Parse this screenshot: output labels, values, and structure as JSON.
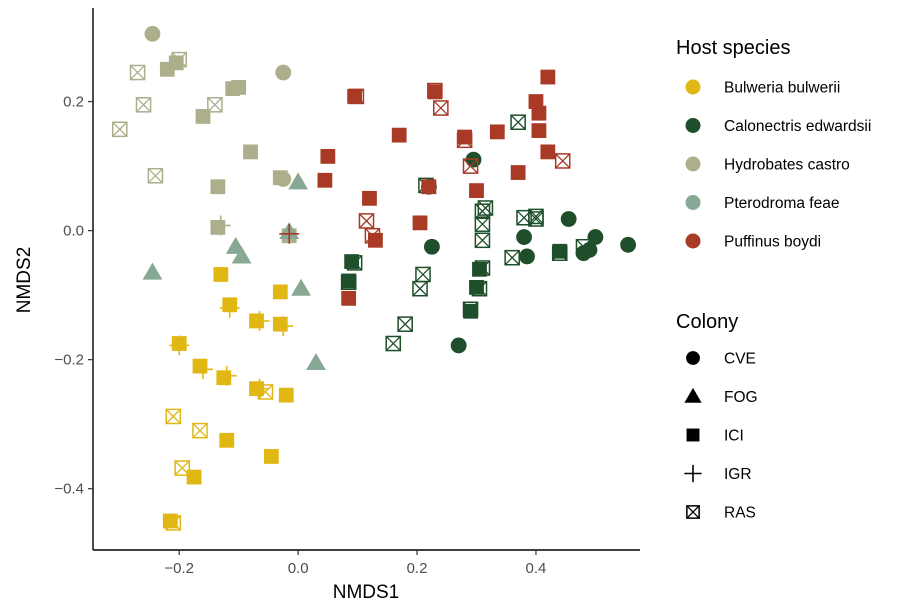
{
  "chart_data": {
    "type": "scatter",
    "xlabel": "NMDS1",
    "ylabel": "NMDS2",
    "xlim": [
      -0.345,
      0.575
    ],
    "ylim": [
      -0.495,
      0.345
    ],
    "xticks": [
      -0.2,
      0.0,
      0.2,
      0.4
    ],
    "yticks": [
      -0.4,
      -0.2,
      0.0,
      0.2
    ],
    "xtick_labels": [
      "−0.2",
      "0.0",
      "0.2",
      "0.4"
    ],
    "ytick_labels": [
      "−0.4",
      "−0.2",
      "0.0",
      "0.2"
    ],
    "grid": false,
    "legend_position": "right",
    "legend_species_title": "Host species",
    "legend_colony_title": "Colony",
    "species": [
      {
        "key": "BB",
        "name": "Bulweria bulwerii",
        "color": "#E0B713"
      },
      {
        "key": "CE",
        "name": "Calonectris edwardsii",
        "color": "#1F4F2A"
      },
      {
        "key": "HC",
        "name": "Hydrobates castro",
        "color": "#ADAE8B"
      },
      {
        "key": "PF",
        "name": "Pterodroma feae",
        "color": "#87A894"
      },
      {
        "key": "PB",
        "name": "Puffinus boydi",
        "color": "#A93A26"
      }
    ],
    "colonies": [
      {
        "key": "CVE",
        "name": "CVE",
        "shape": "circle"
      },
      {
        "key": "FOG",
        "name": "FOG",
        "shape": "triangle"
      },
      {
        "key": "ICI",
        "name": "ICI",
        "shape": "square"
      },
      {
        "key": "IGR",
        "name": "IGR",
        "shape": "plus"
      },
      {
        "key": "RAS",
        "name": "RAS",
        "shape": "boxx"
      }
    ],
    "points": [
      {
        "x": -0.13,
        "y": -0.068,
        "s": "BB",
        "c": "ICI"
      },
      {
        "x": -0.115,
        "y": -0.115,
        "s": "BB",
        "c": "ICI"
      },
      {
        "x": -0.115,
        "y": -0.12,
        "s": "BB",
        "c": "IGR"
      },
      {
        "x": -0.07,
        "y": -0.14,
        "s": "BB",
        "c": "ICI"
      },
      {
        "x": -0.065,
        "y": -0.14,
        "s": "BB",
        "c": "IGR"
      },
      {
        "x": -0.03,
        "y": -0.095,
        "s": "BB",
        "c": "ICI"
      },
      {
        "x": -0.03,
        "y": -0.145,
        "s": "BB",
        "c": "ICI"
      },
      {
        "x": -0.025,
        "y": -0.148,
        "s": "BB",
        "c": "IGR"
      },
      {
        "x": -0.2,
        "y": -0.175,
        "s": "BB",
        "c": "ICI"
      },
      {
        "x": -0.2,
        "y": -0.178,
        "s": "BB",
        "c": "IGR"
      },
      {
        "x": -0.165,
        "y": -0.21,
        "s": "BB",
        "c": "ICI"
      },
      {
        "x": -0.16,
        "y": -0.215,
        "s": "BB",
        "c": "IGR"
      },
      {
        "x": -0.125,
        "y": -0.228,
        "s": "BB",
        "c": "ICI"
      },
      {
        "x": -0.12,
        "y": -0.225,
        "s": "BB",
        "c": "IGR"
      },
      {
        "x": -0.07,
        "y": -0.245,
        "s": "BB",
        "c": "ICI"
      },
      {
        "x": -0.065,
        "y": -0.245,
        "s": "BB",
        "c": "IGR"
      },
      {
        "x": -0.055,
        "y": -0.25,
        "s": "BB",
        "c": "RAS"
      },
      {
        "x": -0.02,
        "y": -0.255,
        "s": "BB",
        "c": "ICI"
      },
      {
        "x": -0.21,
        "y": -0.288,
        "s": "BB",
        "c": "RAS"
      },
      {
        "x": -0.165,
        "y": -0.31,
        "s": "BB",
        "c": "RAS"
      },
      {
        "x": -0.12,
        "y": -0.325,
        "s": "BB",
        "c": "ICI"
      },
      {
        "x": -0.045,
        "y": -0.35,
        "s": "BB",
        "c": "ICI"
      },
      {
        "x": -0.195,
        "y": -0.368,
        "s": "BB",
        "c": "RAS"
      },
      {
        "x": -0.175,
        "y": -0.382,
        "s": "BB",
        "c": "ICI"
      },
      {
        "x": -0.215,
        "y": -0.45,
        "s": "BB",
        "c": "ICI"
      },
      {
        "x": -0.21,
        "y": -0.453,
        "s": "BB",
        "c": "RAS"
      },
      {
        "x": 0.09,
        "y": -0.048,
        "s": "CE",
        "c": "ICI"
      },
      {
        "x": 0.095,
        "y": -0.05,
        "s": "CE",
        "c": "RAS"
      },
      {
        "x": 0.085,
        "y": -0.078,
        "s": "CE",
        "c": "ICI"
      },
      {
        "x": 0.085,
        "y": -0.08,
        "s": "CE",
        "c": "RAS"
      },
      {
        "x": 0.18,
        "y": -0.145,
        "s": "CE",
        "c": "RAS"
      },
      {
        "x": 0.16,
        "y": -0.175,
        "s": "CE",
        "c": "RAS"
      },
      {
        "x": 0.21,
        "y": -0.068,
        "s": "CE",
        "c": "RAS"
      },
      {
        "x": 0.205,
        "y": -0.09,
        "s": "CE",
        "c": "RAS"
      },
      {
        "x": 0.225,
        "y": -0.025,
        "s": "CE",
        "c": "CVE"
      },
      {
        "x": 0.215,
        "y": 0.07,
        "s": "CE",
        "c": "RAS"
      },
      {
        "x": 0.22,
        "y": 0.068,
        "s": "CE",
        "c": "CVE"
      },
      {
        "x": 0.27,
        "y": -0.178,
        "s": "CE",
        "c": "CVE"
      },
      {
        "x": 0.29,
        "y": -0.125,
        "s": "CE",
        "c": "ICI"
      },
      {
        "x": 0.29,
        "y": -0.122,
        "s": "CE",
        "c": "RAS"
      },
      {
        "x": 0.3,
        "y": -0.088,
        "s": "CE",
        "c": "ICI"
      },
      {
        "x": 0.305,
        "y": -0.09,
        "s": "CE",
        "c": "RAS"
      },
      {
        "x": 0.305,
        "y": -0.06,
        "s": "CE",
        "c": "ICI"
      },
      {
        "x": 0.31,
        "y": -0.058,
        "s": "CE",
        "c": "RAS"
      },
      {
        "x": 0.295,
        "y": 0.11,
        "s": "CE",
        "c": "CVE"
      },
      {
        "x": 0.31,
        "y": 0.03,
        "s": "CE",
        "c": "RAS"
      },
      {
        "x": 0.31,
        "y": 0.01,
        "s": "CE",
        "c": "RAS"
      },
      {
        "x": 0.31,
        "y": -0.015,
        "s": "CE",
        "c": "RAS"
      },
      {
        "x": 0.315,
        "y": 0.035,
        "s": "CE",
        "c": "RAS"
      },
      {
        "x": 0.37,
        "y": 0.168,
        "s": "CE",
        "c": "RAS"
      },
      {
        "x": 0.36,
        "y": -0.042,
        "s": "CE",
        "c": "RAS"
      },
      {
        "x": 0.38,
        "y": -0.01,
        "s": "CE",
        "c": "CVE"
      },
      {
        "x": 0.385,
        "y": -0.04,
        "s": "CE",
        "c": "CVE"
      },
      {
        "x": 0.38,
        "y": 0.02,
        "s": "CE",
        "c": "RAS"
      },
      {
        "x": 0.4,
        "y": 0.022,
        "s": "CE",
        "c": "RAS"
      },
      {
        "x": 0.4,
        "y": 0.018,
        "s": "CE",
        "c": "RAS"
      },
      {
        "x": 0.44,
        "y": -0.032,
        "s": "CE",
        "c": "ICI"
      },
      {
        "x": 0.44,
        "y": -0.035,
        "s": "CE",
        "c": "RAS"
      },
      {
        "x": 0.455,
        "y": 0.018,
        "s": "CE",
        "c": "CVE"
      },
      {
        "x": 0.48,
        "y": -0.035,
        "s": "CE",
        "c": "CVE"
      },
      {
        "x": 0.48,
        "y": -0.025,
        "s": "CE",
        "c": "RAS"
      },
      {
        "x": 0.49,
        "y": -0.03,
        "s": "CE",
        "c": "CVE"
      },
      {
        "x": 0.5,
        "y": -0.01,
        "s": "CE",
        "c": "CVE"
      },
      {
        "x": 0.555,
        "y": -0.022,
        "s": "CE",
        "c": "CVE"
      },
      {
        "x": -0.245,
        "y": 0.305,
        "s": "HC",
        "c": "CVE"
      },
      {
        "x": -0.27,
        "y": 0.245,
        "s": "HC",
        "c": "RAS"
      },
      {
        "x": -0.22,
        "y": 0.25,
        "s": "HC",
        "c": "ICI"
      },
      {
        "x": -0.205,
        "y": 0.26,
        "s": "HC",
        "c": "ICI"
      },
      {
        "x": -0.2,
        "y": 0.265,
        "s": "HC",
        "c": "RAS"
      },
      {
        "x": -0.26,
        "y": 0.195,
        "s": "HC",
        "c": "RAS"
      },
      {
        "x": -0.3,
        "y": 0.157,
        "s": "HC",
        "c": "RAS"
      },
      {
        "x": -0.16,
        "y": 0.177,
        "s": "HC",
        "c": "ICI"
      },
      {
        "x": -0.14,
        "y": 0.195,
        "s": "HC",
        "c": "RAS"
      },
      {
        "x": -0.11,
        "y": 0.22,
        "s": "HC",
        "c": "ICI"
      },
      {
        "x": -0.1,
        "y": 0.222,
        "s": "HC",
        "c": "ICI"
      },
      {
        "x": -0.025,
        "y": 0.245,
        "s": "HC",
        "c": "CVE"
      },
      {
        "x": -0.08,
        "y": 0.122,
        "s": "HC",
        "c": "ICI"
      },
      {
        "x": -0.03,
        "y": 0.082,
        "s": "HC",
        "c": "ICI"
      },
      {
        "x": -0.025,
        "y": 0.08,
        "s": "HC",
        "c": "CVE"
      },
      {
        "x": -0.24,
        "y": 0.085,
        "s": "HC",
        "c": "RAS"
      },
      {
        "x": -0.135,
        "y": 0.068,
        "s": "HC",
        "c": "ICI"
      },
      {
        "x": -0.135,
        "y": 0.005,
        "s": "HC",
        "c": "ICI"
      },
      {
        "x": -0.13,
        "y": 0.008,
        "s": "HC",
        "c": "IGR"
      },
      {
        "x": -0.015,
        "y": -0.008,
        "s": "HC",
        "c": "ICI"
      },
      {
        "x": 0.0,
        "y": 0.075,
        "s": "PF",
        "c": "FOG"
      },
      {
        "x": -0.015,
        "y": -0.002,
        "s": "PF",
        "c": "FOG"
      },
      {
        "x": -0.105,
        "y": -0.025,
        "s": "PF",
        "c": "FOG"
      },
      {
        "x": -0.095,
        "y": -0.04,
        "s": "PF",
        "c": "FOG"
      },
      {
        "x": -0.245,
        "y": -0.065,
        "s": "PF",
        "c": "FOG"
      },
      {
        "x": 0.005,
        "y": -0.09,
        "s": "PF",
        "c": "FOG"
      },
      {
        "x": 0.03,
        "y": -0.205,
        "s": "PF",
        "c": "FOG"
      },
      {
        "x": -0.015,
        "y": -0.005,
        "s": "PB",
        "c": "IGR"
      },
      {
        "x": 0.05,
        "y": 0.115,
        "s": "PB",
        "c": "ICI"
      },
      {
        "x": 0.045,
        "y": 0.078,
        "s": "PB",
        "c": "ICI"
      },
      {
        "x": 0.095,
        "y": 0.208,
        "s": "PB",
        "c": "ICI"
      },
      {
        "x": 0.098,
        "y": 0.208,
        "s": "PB",
        "c": "RAS"
      },
      {
        "x": 0.12,
        "y": 0.05,
        "s": "PB",
        "c": "ICI"
      },
      {
        "x": 0.115,
        "y": 0.015,
        "s": "PB",
        "c": "RAS"
      },
      {
        "x": 0.125,
        "y": -0.008,
        "s": "PB",
        "c": "RAS"
      },
      {
        "x": 0.13,
        "y": -0.015,
        "s": "PB",
        "c": "ICI"
      },
      {
        "x": 0.085,
        "y": -0.105,
        "s": "PB",
        "c": "ICI"
      },
      {
        "x": 0.17,
        "y": 0.148,
        "s": "PB",
        "c": "ICI"
      },
      {
        "x": 0.205,
        "y": 0.012,
        "s": "PB",
        "c": "ICI"
      },
      {
        "x": 0.22,
        "y": 0.068,
        "s": "PB",
        "c": "ICI"
      },
      {
        "x": 0.23,
        "y": 0.215,
        "s": "PB",
        "c": "ICI"
      },
      {
        "x": 0.23,
        "y": 0.217,
        "s": "PB",
        "c": "RAS"
      },
      {
        "x": 0.24,
        "y": 0.19,
        "s": "PB",
        "c": "RAS"
      },
      {
        "x": 0.28,
        "y": 0.145,
        "s": "PB",
        "c": "ICI"
      },
      {
        "x": 0.28,
        "y": 0.14,
        "s": "PB",
        "c": "RAS"
      },
      {
        "x": 0.29,
        "y": 0.1,
        "s": "PB",
        "c": "RAS"
      },
      {
        "x": 0.3,
        "y": 0.062,
        "s": "PB",
        "c": "ICI"
      },
      {
        "x": 0.335,
        "y": 0.153,
        "s": "PB",
        "c": "ICI"
      },
      {
        "x": 0.37,
        "y": 0.09,
        "s": "PB",
        "c": "ICI"
      },
      {
        "x": 0.4,
        "y": 0.2,
        "s": "PB",
        "c": "ICI"
      },
      {
        "x": 0.405,
        "y": 0.182,
        "s": "PB",
        "c": "ICI"
      },
      {
        "x": 0.405,
        "y": 0.155,
        "s": "PB",
        "c": "ICI"
      },
      {
        "x": 0.42,
        "y": 0.238,
        "s": "PB",
        "c": "ICI"
      },
      {
        "x": 0.42,
        "y": 0.122,
        "s": "PB",
        "c": "ICI"
      },
      {
        "x": 0.445,
        "y": 0.108,
        "s": "PB",
        "c": "RAS"
      }
    ]
  }
}
